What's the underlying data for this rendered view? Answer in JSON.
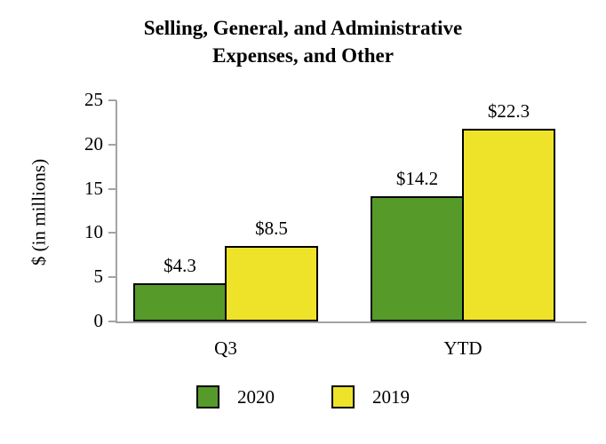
{
  "title_lines": [
    "Selling, General, and Administrative",
    "Expenses, and Other"
  ],
  "y_axis": {
    "label": "$ (in millions)"
  },
  "colors": {
    "series_2020": "#569b29",
    "series_2019": "#efe32a",
    "axis_line": "#a3a3a3",
    "bar_border": "#000000"
  },
  "chart_data": {
    "type": "bar",
    "title": "Selling, General, and Administrative Expenses, and Other",
    "categories": [
      "Q3",
      "YTD"
    ],
    "series": [
      {
        "name": "2020",
        "values": [
          4.3,
          14.2
        ],
        "labels": [
          "$4.3",
          "$14.2"
        ],
        "color": "#569b29"
      },
      {
        "name": "2019",
        "values": [
          8.5,
          22.3
        ],
        "labels": [
          "$8.5",
          "$22.3"
        ],
        "color": "#efe32a"
      }
    ],
    "xlabel": "",
    "ylabel": "$ (in millions)",
    "ylim": [
      0,
      25
    ],
    "yticks": [
      0,
      5,
      10,
      15,
      20,
      25
    ],
    "grid": false,
    "legend_position": "bottom"
  }
}
